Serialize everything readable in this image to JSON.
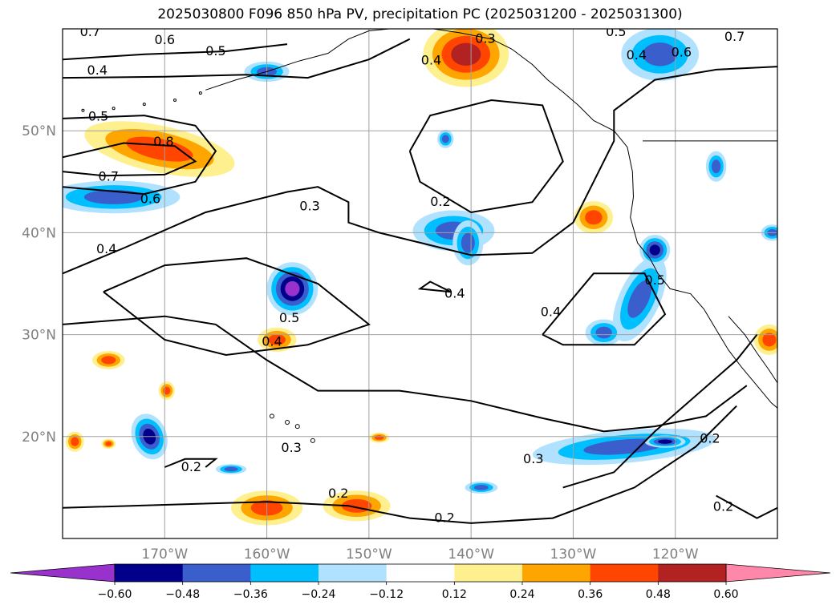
{
  "chart_data": {
    "type": "heatmap",
    "title": "2025030800 F096 850 hPa PV, precipitation PC (2025031200 - 2025031300)",
    "map": {
      "lon_range": [
        -180,
        -110
      ],
      "lat_range": [
        10,
        60
      ],
      "lon_ticks": [
        -170,
        -160,
        -150,
        -140,
        -130,
        -120
      ],
      "lon_tick_labels": [
        "170°W",
        "160°W",
        "150°W",
        "140°W",
        "130°W",
        "120°W"
      ],
      "lat_ticks": [
        20,
        30,
        40,
        50
      ],
      "lat_tick_labels": [
        "20°N",
        "30°N",
        "40°N",
        "50°N"
      ],
      "grid": true
    },
    "colorbar": {
      "orientation": "horizontal",
      "extend": "both",
      "levels": [
        -0.6,
        -0.48,
        -0.36,
        -0.24,
        -0.12,
        0.12,
        0.24,
        0.36,
        0.48,
        0.6
      ],
      "tick_labels": [
        "−0.60",
        "−0.48",
        "−0.36",
        "−0.24",
        "−0.12",
        "0.12",
        "0.24",
        "0.36",
        "0.48",
        "0.60"
      ],
      "colors": [
        "#9932cc",
        "#00008b",
        "#3a5fcd",
        "#00bfff",
        "#b0e2ff",
        "#ffffff",
        "#fff08f",
        "#ffa500",
        "#ff4500",
        "#b22222",
        "#ff88aa"
      ]
    },
    "contour_labels": [
      {
        "text": "0.7",
        "lon": -177.3,
        "lat": 59.7
      },
      {
        "text": "0.6",
        "lon": -170.0,
        "lat": 58.9
      },
      {
        "text": "0.5",
        "lon": -165.0,
        "lat": 57.8
      },
      {
        "text": "0.4",
        "lon": -176.6,
        "lat": 55.9
      },
      {
        "text": "0.5",
        "lon": -176.5,
        "lat": 51.4
      },
      {
        "text": "0.8",
        "lon": -170.1,
        "lat": 48.9
      },
      {
        "text": "0.7",
        "lon": -175.5,
        "lat": 45.5
      },
      {
        "text": "0.6",
        "lon": -171.4,
        "lat": 43.3
      },
      {
        "text": "0.4",
        "lon": -175.7,
        "lat": 38.4
      },
      {
        "text": "0.3",
        "lon": -155.8,
        "lat": 42.6
      },
      {
        "text": "0.4",
        "lon": -143.9,
        "lat": 56.9
      },
      {
        "text": "0.3",
        "lon": -138.6,
        "lat": 59.0
      },
      {
        "text": "0.2",
        "lon": -143.0,
        "lat": 43.0
      },
      {
        "text": "0.4",
        "lon": -141.6,
        "lat": 34.0
      },
      {
        "text": "0.5",
        "lon": -157.8,
        "lat": 31.6
      },
      {
        "text": "0.4",
        "lon": -159.5,
        "lat": 29.3
      },
      {
        "text": "0.5",
        "lon": -125.8,
        "lat": 59.7
      },
      {
        "text": "0.4",
        "lon": -123.8,
        "lat": 57.4
      },
      {
        "text": "0.6",
        "lon": -119.4,
        "lat": 57.7
      },
      {
        "text": "0.7",
        "lon": -114.2,
        "lat": 59.2
      },
      {
        "text": "0.4",
        "lon": -132.2,
        "lat": 32.2
      },
      {
        "text": "0.5",
        "lon": -122.0,
        "lat": 35.3
      },
      {
        "text": "0.3",
        "lon": -133.9,
        "lat": 17.8
      },
      {
        "text": "0.2",
        "lon": -116.6,
        "lat": 19.8
      },
      {
        "text": "0.2",
        "lon": -115.3,
        "lat": 13.1
      },
      {
        "text": "0.2",
        "lon": -142.6,
        "lat": 12.0
      },
      {
        "text": "0.2",
        "lon": -153.0,
        "lat": 14.4
      },
      {
        "text": "0.3",
        "lon": -157.6,
        "lat": 18.9
      },
      {
        "text": "0.2",
        "lon": -167.4,
        "lat": 17.0
      }
    ],
    "anomaly_patches": [
      {
        "lon": -170.5,
        "lat": 48.2,
        "rlon": 7.5,
        "rlat": 2.3,
        "rot": 12,
        "value": 0.44
      },
      {
        "lon": -175.0,
        "lat": 43.5,
        "rlon": 6.5,
        "rlat": 1.6,
        "rot": 0,
        "value": -0.4
      },
      {
        "lon": -157.5,
        "lat": 34.5,
        "rlon": 2.5,
        "rlat": 2.6,
        "rot": 0,
        "value": -0.62
      },
      {
        "lon": -159.0,
        "lat": 29.5,
        "rlon": 1.9,
        "rlat": 1.2,
        "rot": 0,
        "value": 0.4
      },
      {
        "lon": -175.5,
        "lat": 27.5,
        "rlon": 1.6,
        "rlat": 0.9,
        "rot": 0,
        "value": 0.38
      },
      {
        "lon": -169.8,
        "lat": 24.5,
        "rlon": 0.8,
        "rlat": 0.9,
        "rot": 0,
        "value": 0.38
      },
      {
        "lon": -171.5,
        "lat": 20.0,
        "rlon": 1.7,
        "rlat": 2.3,
        "rot": -20,
        "value": -0.55
      },
      {
        "lon": -178.8,
        "lat": 19.5,
        "rlon": 0.9,
        "rlat": 1.0,
        "rot": 0,
        "value": 0.37
      },
      {
        "lon": -175.5,
        "lat": 19.3,
        "rlon": 0.7,
        "rlat": 0.5,
        "rot": 0,
        "value": 0.37
      },
      {
        "lon": -163.5,
        "lat": 16.8,
        "rlon": 1.5,
        "rlat": 0.5,
        "rot": 0,
        "value": -0.38
      },
      {
        "lon": -160.0,
        "lat": 13.0,
        "rlon": 3.5,
        "rlat": 1.7,
        "rot": 0,
        "value": 0.42
      },
      {
        "lon": -151.2,
        "lat": 13.2,
        "rlon": 3.3,
        "rlat": 1.5,
        "rot": 0,
        "value": 0.42
      },
      {
        "lon": -149.0,
        "lat": 19.9,
        "rlon": 1.0,
        "rlat": 0.5,
        "rot": 0,
        "value": 0.37
      },
      {
        "lon": -141.7,
        "lat": 40.2,
        "rlon": 4.0,
        "rlat": 2.0,
        "rot": 0,
        "value": -0.38
      },
      {
        "lon": -140.3,
        "lat": 39.0,
        "rlon": 1.5,
        "rlat": 2.2,
        "rot": 0,
        "value": -0.36
      },
      {
        "lon": -142.5,
        "lat": 49.2,
        "rlon": 0.8,
        "rlat": 0.9,
        "rot": 0,
        "value": -0.38
      },
      {
        "lon": -140.5,
        "lat": 57.5,
        "rlon": 4.2,
        "rlat": 3.2,
        "rot": 0,
        "value": 0.52
      },
      {
        "lon": -160.0,
        "lat": 55.8,
        "rlon": 2.2,
        "rlat": 1.0,
        "rot": 0,
        "value": -0.38
      },
      {
        "lon": -121.5,
        "lat": 57.5,
        "rlon": 3.8,
        "rlat": 2.6,
        "rot": 0,
        "value": -0.4
      },
      {
        "lon": -128.0,
        "lat": 41.5,
        "rlon": 1.9,
        "rlat": 1.6,
        "rot": 0,
        "value": 0.4
      },
      {
        "lon": -123.5,
        "lat": 33.5,
        "rlon": 2.0,
        "rlat": 4.5,
        "rot": 25,
        "value": -0.38
      },
      {
        "lon": -122.0,
        "lat": 38.3,
        "rlon": 1.5,
        "rlat": 1.5,
        "rot": 0,
        "value": -0.5
      },
      {
        "lon": -127.0,
        "lat": 30.2,
        "rlon": 1.8,
        "rlat": 1.3,
        "rot": 0,
        "value": -0.38
      },
      {
        "lon": -125.0,
        "lat": 19.0,
        "rlon": 9.0,
        "rlat": 1.6,
        "rot": -5,
        "value": -0.4
      },
      {
        "lon": -121.0,
        "lat": 19.5,
        "rlon": 2.0,
        "rlat": 0.6,
        "rot": 0,
        "value": -0.5
      },
      {
        "lon": -139.0,
        "lat": 15.0,
        "rlon": 1.6,
        "rlat": 0.6,
        "rot": 0,
        "value": -0.37
      },
      {
        "lon": -116.0,
        "lat": 46.5,
        "rlon": 1.0,
        "rlat": 1.5,
        "rot": 0,
        "value": -0.38
      },
      {
        "lon": -110.5,
        "lat": 40.0,
        "rlon": 1.1,
        "rlat": 0.8,
        "rot": 0,
        "value": -0.38
      },
      {
        "lon": -110.8,
        "lat": 29.5,
        "rlon": 1.5,
        "rlat": 1.5,
        "rot": 0,
        "value": 0.4
      }
    ]
  }
}
